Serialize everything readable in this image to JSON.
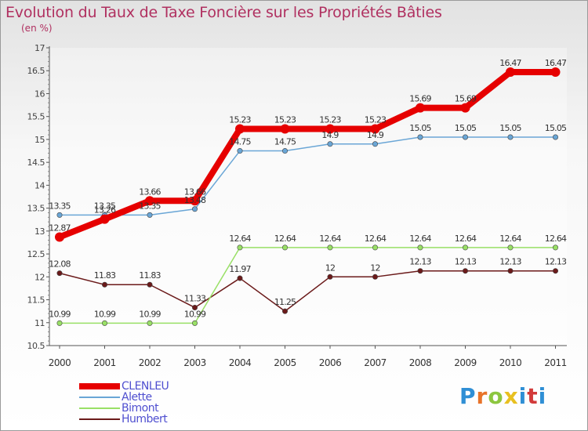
{
  "title": "Evolution du Taux de Taxe Foncière sur les Propriétés Bâties",
  "unit": "(en %)",
  "logo": {
    "text": "Proxiti",
    "colors": [
      "#2f8fd5",
      "#e8732a",
      "#8cc63f",
      "#e8c020",
      "#2f8fd5",
      "#d23a3a",
      "#2f8fd5"
    ]
  },
  "chart_data": {
    "type": "line",
    "title": "Evolution du Taux de Taxe Foncière sur les Propriétés Bâties",
    "ylabel": "(en %)",
    "xlabel": "",
    "categories": [
      "2000",
      "2001",
      "2002",
      "2003",
      "2004",
      "2005",
      "2006",
      "2007",
      "2008",
      "2009",
      "2010",
      "2011"
    ],
    "ylim": [
      10.5,
      17
    ],
    "yticks": [
      10.5,
      11,
      11.5,
      12,
      12.5,
      13,
      13.5,
      14,
      14.5,
      15,
      15.5,
      16,
      16.5,
      17
    ],
    "ytick_labels": [
      "10.5",
      "11",
      "11.5",
      "12",
      "12.5",
      "13",
      "13.5",
      "14",
      "14.5",
      "15",
      "15.5",
      "16",
      "16.5",
      "17"
    ],
    "series": [
      {
        "name": "CLENLEU",
        "color": "#e60000",
        "values": [
          12.87,
          13.26,
          13.66,
          13.66,
          15.23,
          15.23,
          15.23,
          15.23,
          15.69,
          15.69,
          16.47,
          16.47
        ],
        "labels": [
          "12.87",
          "13.26",
          "13.66",
          "13.66",
          "15.23",
          "15.23",
          "15.23",
          "15.23",
          "15.69",
          "15.69",
          "16.47",
          "16.47"
        ]
      },
      {
        "name": "Alette",
        "color": "#6aa6d6",
        "values": [
          13.35,
          13.35,
          13.35,
          13.48,
          14.75,
          14.75,
          14.9,
          14.9,
          15.05,
          15.05,
          15.05,
          15.05
        ],
        "labels": [
          "13.35",
          "13.35",
          "13.35",
          "13.48",
          "14.75",
          "14.75",
          "14.9",
          "14.9",
          "15.05",
          "15.05",
          "15.05",
          "15.05"
        ]
      },
      {
        "name": "Bimont",
        "color": "#99e066",
        "values": [
          10.99,
          10.99,
          10.99,
          10.99,
          12.64,
          12.64,
          12.64,
          12.64,
          12.64,
          12.64,
          12.64,
          12.64
        ],
        "labels": [
          "10.99",
          "10.99",
          "10.99",
          "10.99",
          "12.64",
          "12.64",
          "12.64",
          "12.64",
          "12.64",
          "12.64",
          "12.64",
          "12.64"
        ]
      },
      {
        "name": "Humbert",
        "color": "#6b1a1a",
        "values": [
          12.08,
          11.83,
          11.83,
          11.33,
          11.97,
          11.25,
          12,
          12,
          12.13,
          12.13,
          12.13,
          12.13
        ],
        "labels": [
          "12.08",
          "11.83",
          "11.83",
          "11.33",
          "11.97",
          "11.25",
          "12",
          "12",
          "12.13",
          "12.13",
          "12.13",
          "12.13"
        ]
      }
    ],
    "legend_position": "bottom-left"
  }
}
